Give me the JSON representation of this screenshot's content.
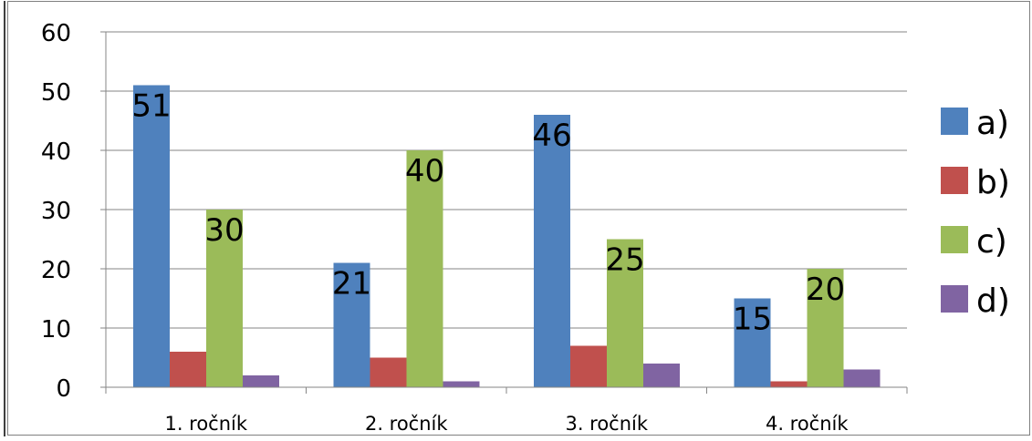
{
  "chart_data": {
    "type": "bar",
    "title": "",
    "xlabel": "",
    "ylabel": "",
    "categories": [
      "1. ročník",
      "2. ročník",
      "3. ročník",
      "4. ročník"
    ],
    "series": [
      {
        "name": "a)",
        "color": "#4F81BD",
        "values": [
          51,
          21,
          46,
          15
        ]
      },
      {
        "name": "b)",
        "color": "#C0504D",
        "values": [
          6,
          5,
          7,
          1
        ]
      },
      {
        "name": "c)",
        "color": "#9BBB59",
        "values": [
          30,
          40,
          25,
          20
        ]
      },
      {
        "name": "d)",
        "color": "#8064A2",
        "values": [
          2,
          1,
          4,
          3
        ]
      }
    ],
    "data_labels_series": [
      "a)",
      "c)"
    ],
    "ylim": [
      0,
      60
    ],
    "yticks": [
      0,
      10,
      20,
      30,
      40,
      50,
      60
    ],
    "grid": true,
    "legend": "right"
  }
}
